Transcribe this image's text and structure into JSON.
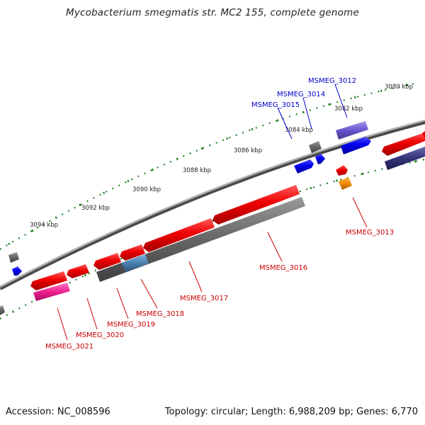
{
  "title": "Mycobacterium smegmatis str. MC2 155, complete genome",
  "footer": {
    "accession": "Accession: NC_008596",
    "topology": "Topology: circular; Length: 6,988,209 bp; Genes: 6,770"
  },
  "ruler_labels": [
    "3080 kbp",
    "3082 kbp",
    "3084 kbp",
    "3086 kbp",
    "3088 kbp",
    "3090 kbp",
    "3092 kbp",
    "3094 kbp"
  ],
  "gene_labels": [
    {
      "text": "MSMEG_3012",
      "color": "#0000cc"
    },
    {
      "text": "MSMEG_3014",
      "color": "#0000cc"
    },
    {
      "text": "MSMEG_3015",
      "color": "#0000cc"
    },
    {
      "text": "MSMEG_3013",
      "color": "#cc0000"
    },
    {
      "text": "MSMEG_3016",
      "color": "#cc0000"
    },
    {
      "text": "MSMEG_3017",
      "color": "#cc0000"
    },
    {
      "text": "MSMEG_3018",
      "color": "#cc0000"
    },
    {
      "text": "MSMEG_3019",
      "color": "#cc0000"
    },
    {
      "text": "MSMEG_3020",
      "color": "#cc0000"
    },
    {
      "text": "MSMEG_3021",
      "color": "#cc0000"
    }
  ],
  "colors": {
    "backbone": "#7a7a7a",
    "forward_gene": "#ee0000",
    "reverse_gene": "#0000ee",
    "gray_gene": "#5a5a5a",
    "purple_gene": "#6655cc",
    "navy_gene": "#33337a",
    "pink_gene": "#ee1f8f",
    "orange_gene": "#f08a00",
    "steelblue_gene": "#4a7fb0",
    "tick": "#1a7a1a",
    "red_label": "#cc0000",
    "blue_label": "#0000cc"
  }
}
